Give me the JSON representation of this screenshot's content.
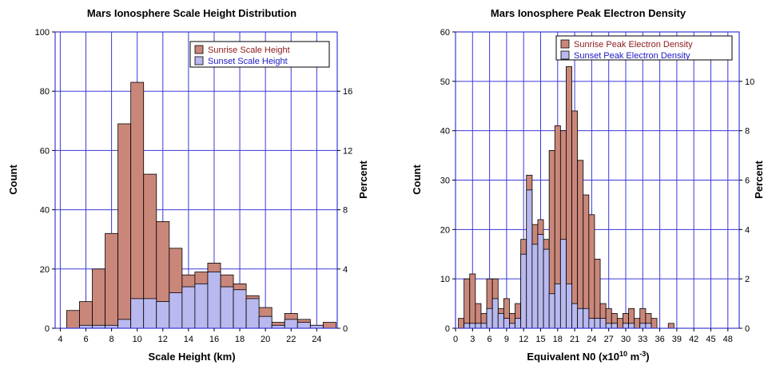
{
  "chart_data": [
    {
      "type": "bar",
      "title": "Mars Ionosphere Scale Height Distribution",
      "xlabel": "Scale Height (km)",
      "ylabel": "Count",
      "y2label": "Percent",
      "xlim": [
        3.6,
        25.6
      ],
      "ylim": [
        0,
        100
      ],
      "y2lim": [
        0,
        20
      ],
      "bin_width": 1,
      "xticks": [
        4,
        6,
        8,
        10,
        12,
        14,
        16,
        18,
        20,
        22,
        24
      ],
      "yticks": [
        0,
        20,
        40,
        60,
        80,
        100
      ],
      "y2ticks": [
        0,
        4,
        8,
        12,
        16
      ],
      "grid": true,
      "legend_position": "top-right",
      "x": [
        5,
        6,
        7,
        8,
        9,
        10,
        11,
        12,
        13,
        14,
        15,
        16,
        17,
        18,
        19,
        20,
        21,
        22,
        23,
        24,
        25
      ],
      "series": [
        {
          "name": "Sunrise Scale Height",
          "color": "#c9877a",
          "values": [
            6,
            9,
            20,
            32,
            69,
            83,
            52,
            36,
            27,
            18,
            19,
            22,
            18,
            15,
            11,
            7,
            2,
            5,
            3,
            1,
            2
          ]
        },
        {
          "name": "Sunset Scale Height",
          "color": "#b9b9f0",
          "values": [
            0,
            1,
            1,
            1,
            3,
            10,
            10,
            9,
            12,
            14,
            15,
            19,
            14,
            13,
            10,
            4,
            1,
            3,
            2,
            1,
            0
          ]
        }
      ]
    },
    {
      "type": "bar",
      "title": "Mars Ionosphere Peak Electron Density",
      "xlabel_main": "Equivalent N0 (x10",
      "xlabel_exp1": "10",
      "xlabel_mid": " m",
      "xlabel_exp2": "-3",
      "xlabel_end": ")",
      "ylabel": "Count",
      "y2label": "Percent",
      "xlim": [
        0,
        50
      ],
      "ylim": [
        0,
        60
      ],
      "y2lim": [
        0,
        12
      ],
      "bin_width": 1,
      "xticks": [
        0,
        3,
        6,
        9,
        12,
        15,
        18,
        21,
        24,
        27,
        30,
        33,
        36,
        39,
        42,
        45,
        48
      ],
      "yticks": [
        0,
        10,
        20,
        30,
        40,
        50,
        60
      ],
      "y2ticks": [
        0,
        2,
        4,
        6,
        8,
        10
      ],
      "grid": true,
      "legend_position": "top-right",
      "x": [
        1,
        2,
        3,
        4,
        5,
        6,
        7,
        8,
        9,
        10,
        11,
        12,
        13,
        14,
        15,
        16,
        17,
        18,
        19,
        20,
        21,
        22,
        23,
        24,
        25,
        26,
        27,
        28,
        29,
        30,
        31,
        32,
        33,
        34,
        35,
        38
      ],
      "series": [
        {
          "name": "Sunrise Peak Electron Density",
          "color": "#c9877a",
          "values": [
            2,
            10,
            11,
            5,
            3,
            10,
            10,
            4,
            6,
            3,
            5,
            18,
            31,
            21,
            22,
            18,
            36,
            41,
            40,
            53,
            44,
            34,
            27,
            23,
            14,
            5,
            4,
            3,
            2,
            3,
            4,
            2,
            4,
            3,
            2,
            1
          ]
        },
        {
          "name": "Sunset Peak Electron Density",
          "color": "#b9b9f0",
          "values": [
            0,
            1,
            1,
            1,
            1,
            4,
            6,
            3,
            2,
            1,
            2,
            15,
            28,
            17,
            19,
            16,
            7,
            9,
            18,
            9,
            5,
            4,
            4,
            2,
            2,
            2,
            1,
            1,
            0,
            1,
            1,
            0,
            1,
            1,
            0,
            0
          ]
        }
      ]
    }
  ]
}
